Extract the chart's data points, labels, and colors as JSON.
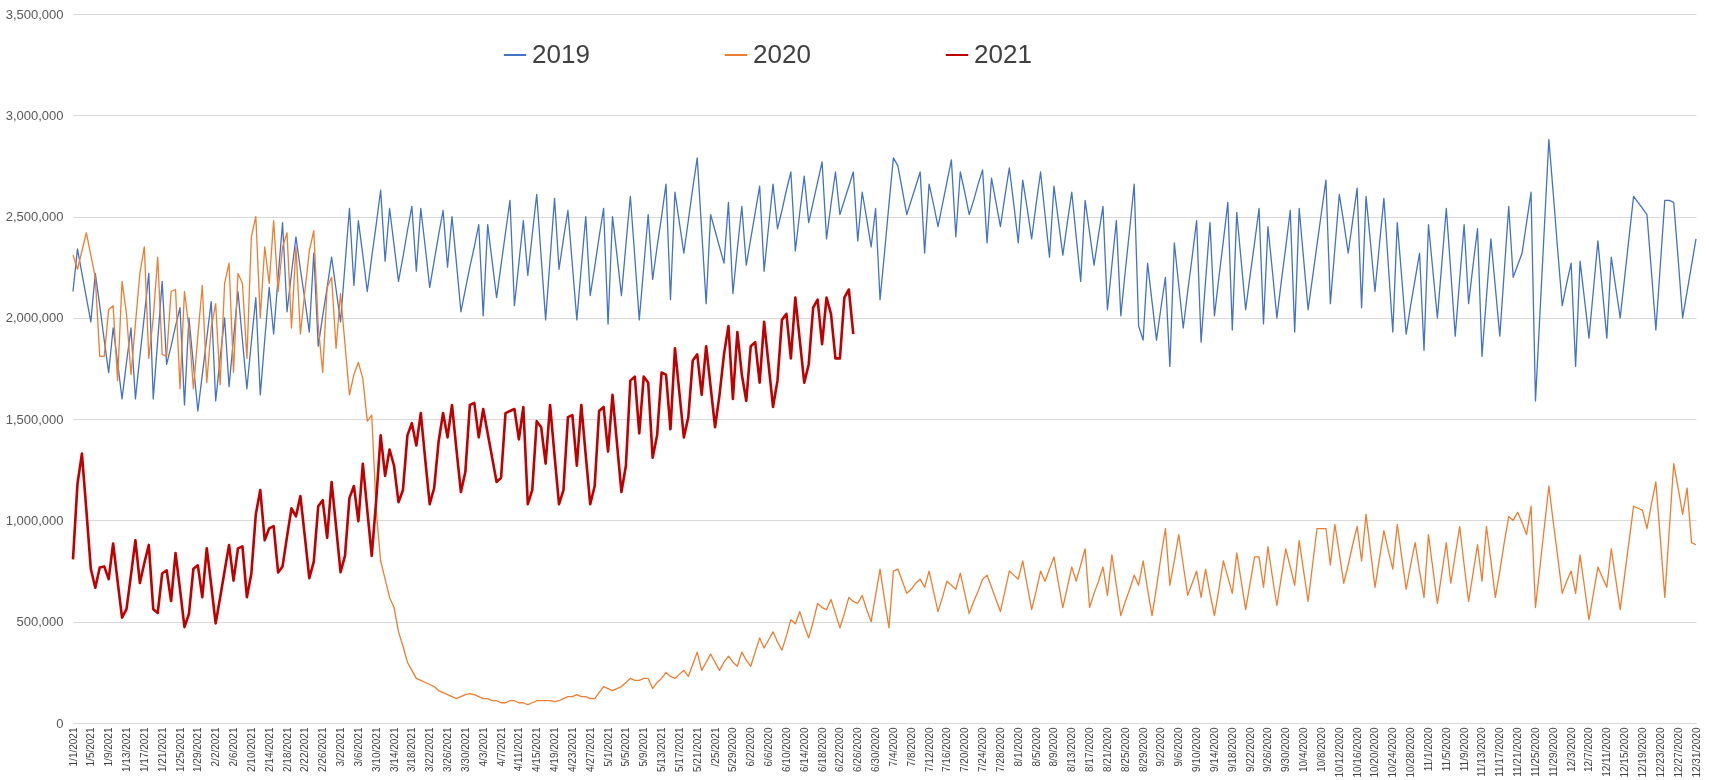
{
  "chart_data": {
    "type": "line",
    "legend": "top",
    "grid": "y",
    "ylim": [
      0,
      3500000
    ],
    "yticks": [
      {
        "value": 0,
        "label": "0"
      },
      {
        "value": 500000,
        "label": "500,000"
      },
      {
        "value": 1000000,
        "label": "1,000,000"
      },
      {
        "value": 1500000,
        "label": "1,500,000"
      },
      {
        "value": 2000000,
        "label": "2,000,000"
      },
      {
        "value": 2500000,
        "label": "2,500,000"
      },
      {
        "value": 3000000,
        "label": "3,000,000"
      },
      {
        "value": 3500000,
        "label": "3,500,000"
      }
    ],
    "categories": [
      "1/1/2021",
      null,
      null,
      null,
      "1/5/2021",
      null,
      null,
      null,
      "1/9/2021",
      null,
      null,
      null,
      "1/13/2021",
      null,
      null,
      null,
      "1/17/2021",
      null,
      null,
      null,
      "1/21/2021",
      null,
      null,
      null,
      "1/25/2021",
      null,
      null,
      null,
      "1/29/2021",
      null,
      null,
      null,
      "2/2/2021",
      null,
      null,
      null,
      "2/6/2021",
      null,
      null,
      null,
      "2/10/2021",
      null,
      null,
      null,
      "2/14/2021",
      null,
      null,
      null,
      "2/18/2021",
      null,
      null,
      null,
      "2/22/2021",
      null,
      null,
      null,
      "2/26/2021",
      null,
      null,
      null,
      "3/2/2021",
      null,
      null,
      null,
      "3/6/2021",
      null,
      null,
      null,
      "3/10/2021",
      null,
      null,
      null,
      "3/14/2021",
      null,
      null,
      null,
      "3/18/2021",
      null,
      null,
      null,
      "3/22/2021",
      null,
      null,
      null,
      "3/26/2021",
      null,
      null,
      null,
      "3/30/2021",
      null,
      null,
      null,
      "4/3/2021",
      null,
      null,
      null,
      "4/7/2021",
      null,
      null,
      null,
      "4/11/2021",
      null,
      null,
      null,
      "4/15/2021",
      null,
      null,
      null,
      "4/19/2021",
      null,
      null,
      null,
      "4/23/2021",
      null,
      null,
      null,
      "4/27/2021",
      null,
      null,
      null,
      "5/1/2021",
      null,
      null,
      null,
      "5/5/2021",
      null,
      null,
      null,
      "5/9/2021",
      null,
      null,
      null,
      "5/13/2021",
      null,
      null,
      null,
      "5/17/2021",
      null,
      null,
      null,
      "5/21/2021",
      null,
      null,
      null,
      "/25/2021",
      null,
      null,
      null,
      "5/29/2020",
      null,
      null,
      null,
      "6/2/2020",
      null,
      null,
      null,
      "6/6/2020",
      null,
      null,
      null,
      "6/10/2020",
      null,
      null,
      null,
      "6/14/2020",
      null,
      null,
      null,
      "6/18/2020",
      null,
      null,
      null,
      "6/22/2020",
      null,
      null,
      null,
      "6/26/2020",
      null,
      null,
      null,
      "6/30/2020",
      null,
      null,
      null,
      "7/4/2020",
      null,
      null,
      null,
      "7/8/2020",
      null,
      null,
      null,
      "7/12/2020",
      null,
      null,
      null,
      "7/16/2020",
      null,
      null,
      null,
      "7/20/2020",
      null,
      null,
      null,
      "7/24/2020",
      null,
      null,
      null,
      "7/28/2020",
      null,
      null,
      null,
      "8/1/2020",
      null,
      null,
      null,
      "8/5/2020",
      null,
      null,
      null,
      "8/9/2020",
      null,
      null,
      null,
      "8/13/2020",
      null,
      null,
      null,
      "8/17/2020",
      null,
      null,
      null,
      "8/21/2020",
      null,
      null,
      null,
      "8/25/2020",
      null,
      null,
      null,
      "8/29/2020",
      null,
      null,
      null,
      "9/2/2020",
      null,
      null,
      null,
      "9/6/2020",
      null,
      null,
      null,
      "9/10/2020",
      null,
      null,
      null,
      "9/14/2020",
      null,
      null,
      null,
      "9/18/2020",
      null,
      null,
      null,
      "9/22/2020",
      null,
      null,
      null,
      "9/26/2020",
      null,
      null,
      null,
      "9/30/2020",
      null,
      null,
      null,
      "10/4/2020",
      null,
      null,
      null,
      "10/8/2020",
      null,
      null,
      null,
      "10/12/2020",
      null,
      null,
      null,
      "10/16/2020",
      null,
      null,
      null,
      "10/20/2020",
      null,
      null,
      null,
      "10/24/2020",
      null,
      null,
      null,
      "10/28/2020",
      null,
      null,
      null,
      "11/1/2020",
      null,
      null,
      null,
      "11/5/2020",
      null,
      null,
      null,
      "11/9/2020",
      null,
      null,
      null,
      "11/13/2020",
      null,
      null,
      null,
      "11/17/2020",
      null,
      null,
      null,
      "11/21/2020",
      null,
      null,
      null,
      "11/25/2020",
      null,
      null,
      null,
      "11/29/2020",
      null,
      null,
      null,
      "12/3/2020",
      null,
      null,
      null,
      "12/7/2020",
      null,
      null,
      null,
      "12/11/2020",
      null,
      null,
      null,
      "12/15/2020",
      null,
      null,
      null,
      "12/19/2020",
      null,
      null,
      null,
      "12/23/2020",
      null,
      null,
      null,
      "12/27/2020",
      null,
      null,
      null,
      "12/31/2020"
    ],
    "series": [
      {
        "name": "2019",
        "color": "#4472c4",
        "values": [
          2130000,
          2340000,
          2220000,
          2100000,
          1980000,
          2220000,
          2060000,
          1890000,
          1730000,
          1950000,
          1780000,
          1600000,
          1780000,
          1950000,
          1600000,
          1810000,
          2010000,
          2220000,
          1600000,
          1890000,
          2180000,
          1770000,
          1860000,
          1960000,
          2050000,
          1570000,
          2000000,
          1770000,
          1540000,
          1720000,
          1900000,
          2080000,
          1590000,
          1800000,
          2000000,
          1660000,
          1900000,
          2130000,
          1890000,
          1650000,
          1880000,
          2100000,
          1620000,
          1890000,
          2150000,
          1920000,
          2200000,
          2470000,
          2030000,
          2220000,
          2400000,
          2240000,
          2090000,
          1930000,
          2320000,
          1860000,
          2010000,
          2150000,
          2300000,
          2140000,
          1980000,
          2260000,
          2540000,
          2160000,
          2480000,
          2310000,
          2130000,
          2300000,
          2460000,
          2630000,
          2280000,
          2540000,
          2360000,
          2180000,
          2300000,
          2430000,
          2550000,
          2230000,
          2540000,
          2350000,
          2150000,
          2280000,
          2410000,
          2530000,
          2250000,
          2500000,
          2270000,
          2030000,
          2140000,
          2250000,
          2350000,
          2460000,
          2010000,
          2460000,
          2280000,
          2100000,
          2260000,
          2420000,
          2580000,
          2060000,
          2270000,
          2480000,
          2210000,
          2410000,
          2610000,
          2300000,
          1990000,
          2290000,
          2590000,
          2240000,
          2390000,
          2530000,
          2260000,
          1990000,
          2250000,
          2500000,
          2110000,
          2250000,
          2400000,
          2540000,
          1970000,
          2500000,
          2310000,
          2110000,
          2360000,
          2600000,
          2300000,
          1990000,
          2250000,
          2510000,
          2190000,
          2350000,
          2500000,
          2660000,
          2090000,
          2620000,
          2470000,
          2320000,
          2480000,
          2640000,
          2790000,
          2430000,
          2070000,
          2510000,
          2430000,
          2350000,
          2270000,
          2570000,
          2120000,
          2340000,
          2550000,
          2260000,
          2390000,
          2520000,
          2650000,
          2230000,
          2450000,
          2660000,
          2440000,
          2530000,
          2630000,
          2720000,
          2330000,
          2520000,
          2700000,
          2470000,
          2570000,
          2670000,
          2770000,
          2390000,
          2560000,
          2720000,
          2510000,
          2580000,
          2650000,
          2720000,
          2380000,
          2620000,
          2490000,
          2350000,
          2540000,
          2090000,
          2320000,
          2560000,
          2790000,
          2750000,
          2630000,
          2510000,
          2580000,
          2650000,
          2720000,
          2320000,
          2660000,
          2560000,
          2450000,
          2560000,
          2670000,
          2780000,
          2400000,
          2720000,
          2620000,
          2510000,
          2580000,
          2660000,
          2730000,
          2370000,
          2690000,
          2570000,
          2450000,
          2600000,
          2740000,
          2560000,
          2370000,
          2680000,
          2540000,
          2390000,
          2560000,
          2720000,
          2510000,
          2300000,
          2650000,
          2480000,
          2310000,
          2470000,
          2620000,
          2400000,
          2180000,
          2580000,
          2420000,
          2260000,
          2410000,
          2550000,
          2040000,
          2260000,
          2480000,
          2010000,
          2230000,
          2440000,
          2660000,
          1960000,
          1890000,
          2270000,
          2080000,
          1890000,
          2050000,
          2200000,
          1760000,
          2370000,
          2160000,
          1950000,
          2130000,
          2300000,
          2480000,
          1880000,
          2180000,
          2470000,
          2010000,
          2200000,
          2380000,
          2570000,
          1940000,
          2520000,
          2280000,
          2040000,
          2210000,
          2370000,
          2540000,
          1970000,
          2450000,
          2230000,
          2000000,
          2180000,
          2350000,
          2530000,
          1930000,
          2540000,
          2290000,
          2040000,
          2200000,
          2360000,
          2520000,
          2680000,
          2070000,
          2340000,
          2610000,
          2470000,
          2320000,
          2480000,
          2640000,
          2050000,
          2600000,
          2370000,
          2130000,
          2360000,
          2590000,
          2260000,
          1930000,
          2470000,
          2200000,
          1920000,
          2060000,
          2190000,
          2320000,
          1840000,
          2460000,
          2230000,
          2000000,
          2270000,
          2540000,
          2230000,
          1910000,
          2190000,
          2460000,
          2070000,
          2260000,
          2440000,
          1810000,
          2100000,
          2390000,
          2150000,
          1910000,
          2230000,
          2550000,
          2200000,
          2260000,
          2320000,
          2470000,
          2620000,
          1590000,
          2020000,
          2450000,
          2880000,
          2610000,
          2330000,
          2060000,
          2170000,
          2270000,
          1760000,
          2280000,
          2090000,
          1900000,
          2140000,
          2380000,
          2140000,
          1900000,
          2300000,
          2150000,
          2000000,
          2200000,
          2400000,
          2600000,
          2570000,
          2540000,
          2510000,
          2230000,
          1940000,
          2260000,
          2580000,
          2580000,
          2570000,
          2290000,
          2000000,
          2130000,
          2260000,
          2390000
        ]
      },
      {
        "name": "2020",
        "color": "#ed7d31",
        "values": [
          2310000,
          2240000,
          2330000,
          2420000,
          2310000,
          2200000,
          1810000,
          1810000,
          2040000,
          2060000,
          1690000,
          2180000,
          2020000,
          1720000,
          1970000,
          2220000,
          2350000,
          1800000,
          2000000,
          2300000,
          1820000,
          1810000,
          2130000,
          2140000,
          1650000,
          2130000,
          1950000,
          1650000,
          1910000,
          2160000,
          1680000,
          1950000,
          2070000,
          1670000,
          2170000,
          2270000,
          1730000,
          2220000,
          2170000,
          1800000,
          2400000,
          2500000,
          2000000,
          2350000,
          2170000,
          2480000,
          2130000,
          2350000,
          2420000,
          1950000,
          2350000,
          1920000,
          2130000,
          2330000,
          2430000,
          1960000,
          1730000,
          2150000,
          2200000,
          1850000,
          2120000,
          1870000,
          1620000,
          1720000,
          1780000,
          1700000,
          1490000,
          1520000,
          1050000,
          800000,
          710000,
          620000,
          570000,
          450000,
          380000,
          300000,
          260000,
          220000,
          210000,
          200000,
          190000,
          180000,
          160000,
          150000,
          140000,
          130000,
          120000,
          130000,
          140000,
          145000,
          140000,
          130000,
          120000,
          120000,
          110000,
          110000,
          100000,
          100000,
          110000,
          110000,
          100000,
          100000,
          90000,
          100000,
          110000,
          110000,
          110000,
          110000,
          105000,
          110000,
          120000,
          130000,
          130000,
          140000,
          130000,
          130000,
          120000,
          120000,
          150000,
          180000,
          170000,
          160000,
          170000,
          180000,
          200000,
          220000,
          210000,
          210000,
          220000,
          220000,
          170000,
          200000,
          220000,
          250000,
          230000,
          220000,
          240000,
          260000,
          230000,
          290000,
          350000,
          260000,
          300000,
          340000,
          300000,
          260000,
          300000,
          330000,
          300000,
          280000,
          350000,
          310000,
          280000,
          350000,
          420000,
          370000,
          410000,
          450000,
          400000,
          360000,
          430000,
          510000,
          490000,
          550000,
          480000,
          420000,
          500000,
          590000,
          570000,
          560000,
          610000,
          540000,
          470000,
          540000,
          620000,
          600000,
          590000,
          630000,
          560000,
          500000,
          630000,
          760000,
          610000,
          470000,
          750000,
          760000,
          700000,
          640000,
          660000,
          690000,
          710000,
          670000,
          750000,
          650000,
          550000,
          620000,
          700000,
          680000,
          660000,
          740000,
          640000,
          540000,
          600000,
          650000,
          710000,
          730000,
          670000,
          610000,
          550000,
          650000,
          750000,
          730000,
          710000,
          800000,
          680000,
          560000,
          650000,
          750000,
          700000,
          760000,
          820000,
          690000,
          570000,
          670000,
          770000,
          700000,
          780000,
          860000,
          570000,
          640000,
          700000,
          770000,
          630000,
          830000,
          680000,
          530000,
          600000,
          660000,
          730000,
          680000,
          800000,
          660000,
          530000,
          670000,
          820000,
          960000,
          680000,
          800000,
          930000,
          780000,
          630000,
          690000,
          750000,
          620000,
          760000,
          640000,
          530000,
          660000,
          800000,
          720000,
          640000,
          840000,
          700000,
          560000,
          690000,
          820000,
          820000,
          670000,
          870000,
          720000,
          580000,
          720000,
          860000,
          770000,
          680000,
          900000,
          750000,
          600000,
          780000,
          960000,
          960000,
          960000,
          780000,
          980000,
          840000,
          690000,
          780000,
          880000,
          970000,
          800000,
          1030000,
          850000,
          670000,
          810000,
          950000,
          850000,
          760000,
          980000,
          820000,
          660000,
          780000,
          890000,
          750000,
          620000,
          930000,
          760000,
          590000,
          740000,
          890000,
          690000,
          830000,
          970000,
          780000,
          600000,
          740000,
          880000,
          700000,
          970000,
          800000,
          620000,
          750000,
          890000,
          1020000,
          1000000,
          1040000,
          990000,
          930000,
          1070000,
          570000,
          770000,
          970000,
          1170000,
          990000,
          820000,
          640000,
          700000,
          750000,
          640000,
          830000,
          670000,
          510000,
          640000,
          770000,
          720000,
          670000,
          860000,
          710000,
          560000,
          730000,
          900000,
          1070000,
          1060000,
          1050000,
          960000,
          1080000,
          1190000,
          910000,
          620000,
          950000,
          1280000,
          1160000,
          1030000,
          1160000,
          890000,
          880000
        ]
      },
      {
        "name": "2021",
        "color": "#c00000",
        "values": [
          808000,
          1180000,
          1330000,
          1050000,
          760000,
          668000,
          768000,
          773000,
          710000,
          886000,
          700000,
          520000,
          562000,
          730000,
          902000,
          691000,
          790000,
          879000,
          562000,
          543000,
          738000,
          754000,
          602000,
          839000,
          660000,
          473000,
          539000,
          761000,
          778000,
          621000,
          862000,
          680000,
          492000,
          620000,
          750000,
          879000,
          703000,
          862000,
          872000,
          621000,
          738000,
          1030000,
          1150000,
          902000,
          961000,
          972000,
          743000,
          773000,
          920000,
          1060000,
          1020000,
          1120000,
          920000,
          715000,
          797000,
          1070000,
          1100000,
          914000,
          1190000,
          970000,
          745000,
          825000,
          1110000,
          1170000,
          996000,
          1280000,
          1050000,
          825000,
          1100000,
          1420000,
          1220000,
          1350000,
          1270000,
          1090000,
          1150000,
          1420000,
          1480000,
          1370000,
          1530000,
          1300000,
          1080000,
          1160000,
          1390000,
          1530000,
          1410000,
          1570000,
          1350000,
          1140000,
          1240000,
          1570000,
          1580000,
          1410000,
          1550000,
          1430000,
          1310000,
          1190000,
          1210000,
          1530000,
          1540000,
          1550000,
          1400000,
          1560000,
          1080000,
          1150000,
          1490000,
          1460000,
          1280000,
          1570000,
          1320000,
          1080000,
          1150000,
          1510000,
          1520000,
          1270000,
          1570000,
          1320000,
          1080000,
          1170000,
          1540000,
          1560000,
          1340000,
          1620000,
          1380000,
          1140000,
          1270000,
          1690000,
          1710000,
          1430000,
          1710000,
          1680000,
          1310000,
          1420000,
          1730000,
          1720000,
          1450000,
          1850000,
          1630000,
          1410000,
          1510000,
          1790000,
          1820000,
          1620000,
          1860000,
          1660000,
          1460000,
          1620000,
          1820000,
          1960000,
          1600000,
          1930000,
          1720000,
          1590000,
          1860000,
          1880000,
          1680000,
          1980000,
          1770000,
          1560000,
          1690000,
          1990000,
          2020000,
          1800000,
          2100000,
          1890000,
          1680000,
          1770000,
          2050000,
          2090000,
          1870000,
          2100000,
          2020000,
          1800000,
          1800000,
          2100000,
          2140000,
          1920000,
          null,
          null,
          null,
          null,
          null,
          null,
          null,
          null,
          null,
          null,
          null,
          null,
          null,
          null,
          null,
          null,
          null,
          null,
          null,
          null,
          null,
          null,
          null,
          null,
          null,
          null,
          null,
          null,
          null,
          null,
          null,
          null,
          null,
          null,
          null,
          null,
          null,
          null,
          null,
          null,
          null,
          null,
          null,
          null,
          null,
          null,
          null,
          null,
          null,
          null,
          null,
          null,
          null,
          null,
          null,
          null,
          null,
          null,
          null,
          null,
          null,
          null,
          null,
          null,
          null,
          null,
          null,
          null,
          null,
          null,
          null,
          null,
          null,
          null,
          null,
          null,
          null,
          null,
          null,
          null,
          null,
          null,
          null,
          null,
          null,
          null,
          null,
          null,
          null,
          null,
          null,
          null,
          null,
          null,
          null,
          null,
          null,
          null,
          null,
          null,
          null,
          null,
          null,
          null,
          null,
          null,
          null,
          null,
          null,
          null,
          null,
          null,
          null,
          null,
          null,
          null,
          null,
          null,
          null,
          null,
          null,
          null,
          null,
          null,
          null,
          null,
          null,
          null,
          null,
          null,
          null,
          null,
          null,
          null,
          null,
          null,
          null,
          null,
          null,
          null,
          null,
          null,
          null,
          null,
          null,
          null,
          null,
          null,
          null,
          null,
          null,
          null,
          null,
          null,
          null,
          null,
          null,
          null,
          null,
          null,
          null,
          null,
          null,
          null,
          null,
          null,
          null,
          null,
          null,
          null,
          null,
          null,
          null,
          null,
          null,
          null,
          null,
          null,
          null,
          null,
          null,
          null,
          null,
          null,
          null,
          null,
          null,
          null,
          null
        ]
      }
    ]
  }
}
